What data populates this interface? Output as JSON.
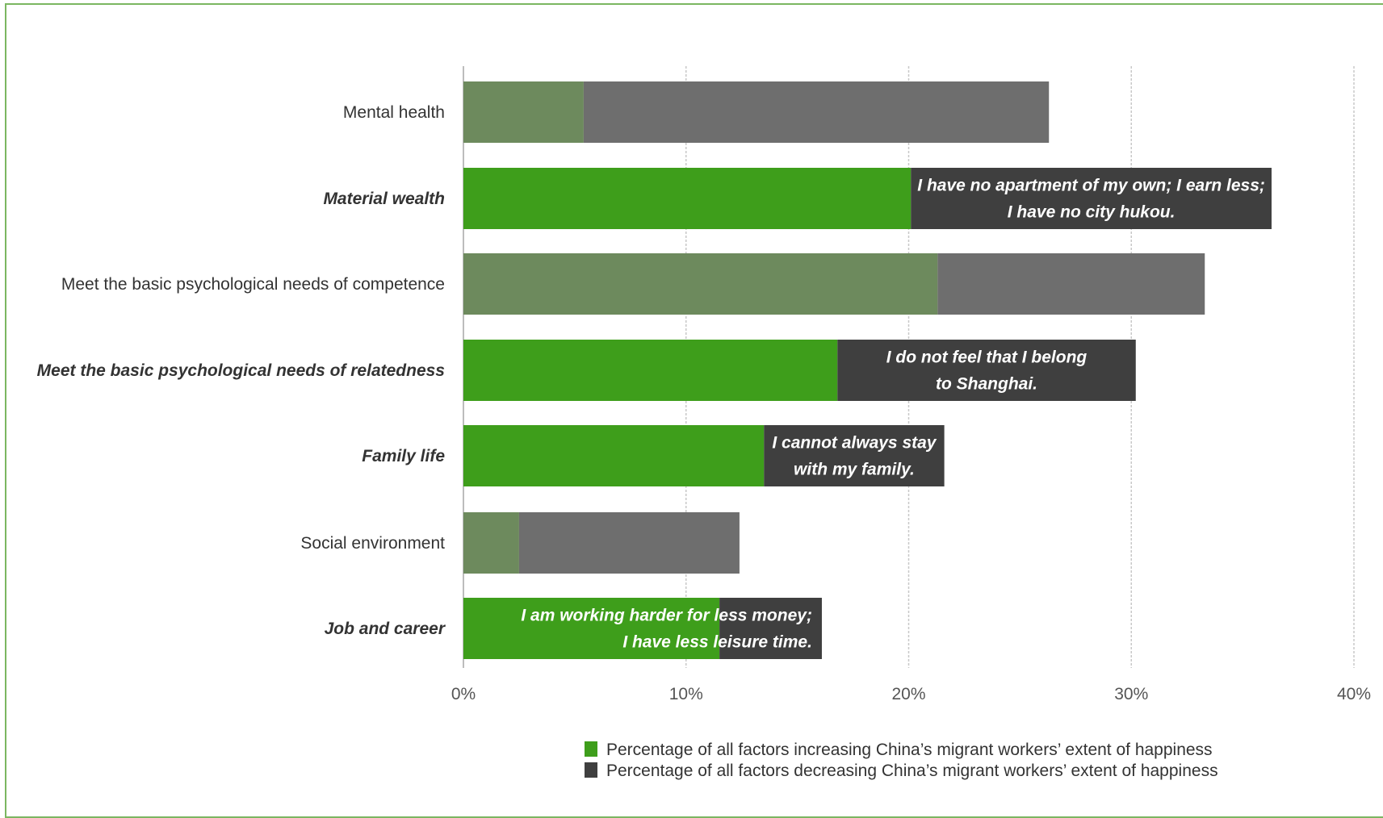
{
  "chart_data": {
    "type": "bar",
    "orientation": "horizontal",
    "stacked": true,
    "categories": [
      "Mental health",
      "Material wealth",
      "Meet the basic psychological needs of competence",
      "Meet the basic psychological needs of relatedness",
      "Family life",
      "Social environment",
      "Job and career"
    ],
    "emphasized": [
      false,
      true,
      false,
      true,
      true,
      false,
      true
    ],
    "series": [
      {
        "name": "Percentage of all factors increasing China’s migrant workers’ extent of happiness",
        "values": [
          5.4,
          20.1,
          21.3,
          16.8,
          13.5,
          2.5,
          11.5
        ]
      },
      {
        "name": "Percentage of all factors decreasing China’s migrant workers’ extent of happiness",
        "values": [
          20.9,
          16.2,
          12.0,
          13.4,
          8.1,
          9.9,
          4.6
        ]
      }
    ],
    "annotations": [
      {
        "category": "Material wealth",
        "lines": [
          "I have no apartment of my own; I earn less;",
          "I have no city hukou."
        ]
      },
      {
        "category": "Meet the basic psychological needs of relatedness",
        "lines": [
          "I do not feel that I belong",
          "to Shanghai."
        ]
      },
      {
        "category": "Family life",
        "lines": [
          "I cannot always stay",
          "with my family."
        ]
      },
      {
        "category": "Job and career",
        "lines": [
          "I am working harder for less money;",
          "I have less leisure time."
        ]
      }
    ],
    "x_ticks": [
      "0%",
      "10%",
      "20%",
      "30%",
      "40%"
    ],
    "xlim": [
      0,
      40
    ],
    "grid": "vertical",
    "legend_position": "bottom-right",
    "colors": {
      "increase": "#3e9e1b",
      "decrease": "#3f3f3f",
      "increase_muted": "#6d8a5d",
      "decrease_muted": "#6e6e6e"
    }
  }
}
